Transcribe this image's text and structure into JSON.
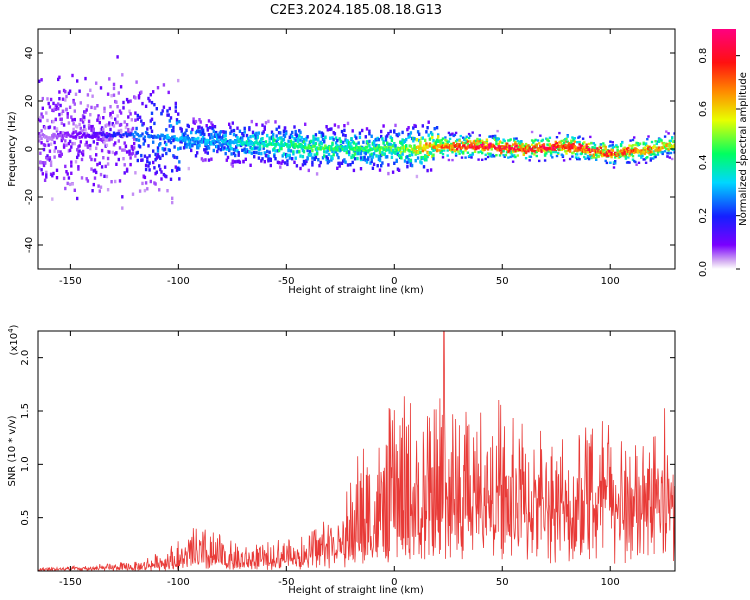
{
  "title": "C2E3.2024.185.08.18.G13",
  "chart_data": [
    {
      "type": "heatmap",
      "xlabel": "Height of straight line (km)",
      "ylabel": "Frequency (Hz)",
      "xlim": [
        -165,
        130
      ],
      "ylim": [
        -50,
        50
      ],
      "xticks": [
        -150,
        -100,
        -50,
        0,
        50,
        100
      ],
      "yticks": [
        -40,
        -20,
        0,
        20,
        40
      ],
      "colorbar": {
        "label": "Normalized spectral amplitude",
        "range": [
          0.0,
          0.9
        ],
        "ticks": [
          "0.0",
          "0.2",
          "0.4",
          "0.6",
          "0.8"
        ],
        "colormap": "rainbow (purple-blue-cyan-green-yellow-orange-red-magenta)"
      },
      "ridge_profile": {
        "x": [
          -160,
          -140,
          -120,
          -100,
          -80,
          -60,
          -40,
          -20,
          0,
          20,
          40,
          60,
          80,
          100,
          120,
          130
        ],
        "center_freq": [
          5,
          6,
          6,
          4,
          3,
          2,
          1,
          0,
          0,
          1,
          1,
          0,
          1,
          -2,
          0,
          2
        ],
        "peak_amplitude": [
          0.05,
          0.12,
          0.25,
          0.3,
          0.32,
          0.4,
          0.45,
          0.45,
          0.48,
          0.7,
          0.85,
          0.8,
          0.82,
          0.75,
          0.7,
          0.55
        ]
      },
      "colors": {
        "low": "#e9d2f7",
        "mid": "#1e3cff",
        "high": "#ff1f1f"
      }
    },
    {
      "type": "line",
      "xlabel": "Height of straight line (km)",
      "ylabel": "SNR (10 * v/v)",
      "multiplier": "(x10^4)",
      "multiplier_base": "(x10",
      "multiplier_exp": "4",
      "xlim": [
        -165,
        130
      ],
      "ylim": [
        0,
        2.25
      ],
      "xticks": [
        -150,
        -100,
        -50,
        0,
        50,
        100
      ],
      "yticks": [
        "0.5",
        "1.0",
        "1.5",
        "2.0"
      ],
      "series": [
        {
          "color": "#e83a37",
          "envelope": {
            "x": [
              -165,
              -140,
              -120,
              -100,
              -90,
              -80,
              -70,
              -60,
              -50,
              -40,
              -30,
              -25,
              -20,
              -15,
              -10,
              -5,
              0,
              10,
              20,
              23,
              30,
              40,
              50,
              60,
              70,
              80,
              90,
              100,
              110,
              120,
              130
            ],
            "base": [
              0.01,
              0.02,
              0.03,
              0.06,
              0.08,
              0.08,
              0.06,
              0.08,
              0.1,
              0.12,
              0.18,
              0.2,
              0.25,
              0.3,
              0.3,
              0.35,
              0.4,
              0.45,
              0.55,
              0.6,
              0.55,
              0.6,
              0.6,
              0.6,
              0.6,
              0.6,
              0.6,
              0.6,
              0.6,
              0.6,
              0.6
            ],
            "peak": [
              0.04,
              0.06,
              0.1,
              0.3,
              0.45,
              0.35,
              0.25,
              0.3,
              0.35,
              0.4,
              0.6,
              0.55,
              1.05,
              1.3,
              1.25,
              1.35,
              1.75,
              1.75,
              1.65,
              2.25,
              1.7,
              1.6,
              1.7,
              1.65,
              1.55,
              1.6,
              1.65,
              1.6,
              1.45,
              1.5,
              1.75
            ]
          }
        }
      ]
    }
  ]
}
